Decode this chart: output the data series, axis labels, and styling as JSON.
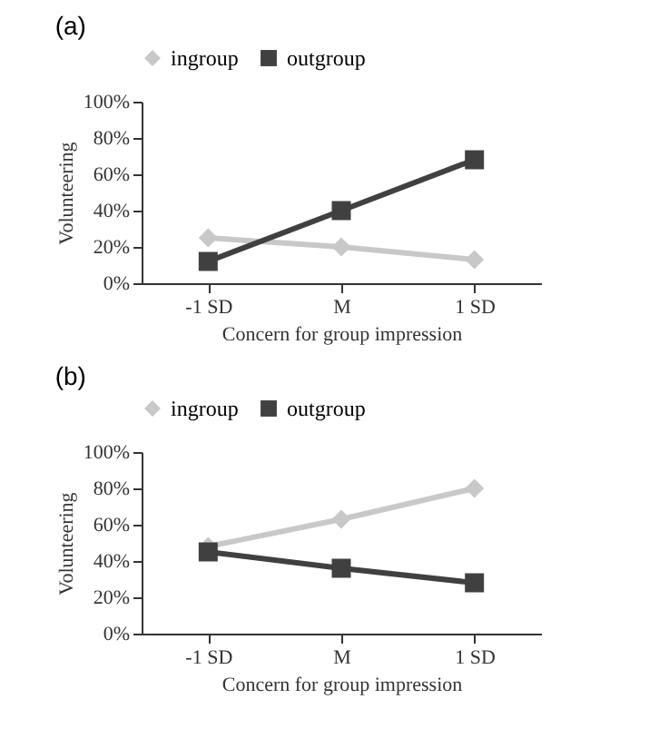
{
  "chart_data": [
    {
      "type": "line",
      "title": "(a)",
      "xlabel": "Concern for group impression",
      "ylabel": "Volunteering",
      "categories": [
        "-1 SD",
        "M",
        "1 SD"
      ],
      "series": [
        {
          "name": "ingroup",
          "color": "#c8c8c8",
          "marker": "diamond",
          "values": [
            25,
            20,
            13
          ]
        },
        {
          "name": "outgroup",
          "color": "#404040",
          "marker": "square",
          "values": [
            12,
            40,
            68
          ]
        }
      ],
      "ylim": [
        0,
        100
      ],
      "yticks": [
        {
          "value": 0,
          "label": "0%"
        },
        {
          "value": 20,
          "label": "20%"
        },
        {
          "value": 40,
          "label": "40%"
        },
        {
          "value": 60,
          "label": "60%"
        },
        {
          "value": 80,
          "label": "80%"
        },
        {
          "value": 100,
          "label": "100%"
        }
      ],
      "grid": false,
      "legend": "top"
    },
    {
      "type": "line",
      "title": "(b)",
      "xlabel": "Concern for group impression",
      "ylabel": "Volunteering",
      "categories": [
        "-1 SD",
        "M",
        "1 SD"
      ],
      "series": [
        {
          "name": "ingroup",
          "color": "#c8c8c8",
          "marker": "diamond",
          "values": [
            48,
            63,
            80
          ]
        },
        {
          "name": "outgroup",
          "color": "#404040",
          "marker": "square",
          "values": [
            45,
            36,
            28
          ]
        }
      ],
      "ylim": [
        0,
        100
      ],
      "yticks": [
        {
          "value": 0,
          "label": "0%"
        },
        {
          "value": 20,
          "label": "20%"
        },
        {
          "value": 40,
          "label": "40%"
        },
        {
          "value": 60,
          "label": "60%"
        },
        {
          "value": 80,
          "label": "80%"
        },
        {
          "value": 100,
          "label": "100%"
        }
      ],
      "grid": false,
      "legend": "top"
    }
  ]
}
